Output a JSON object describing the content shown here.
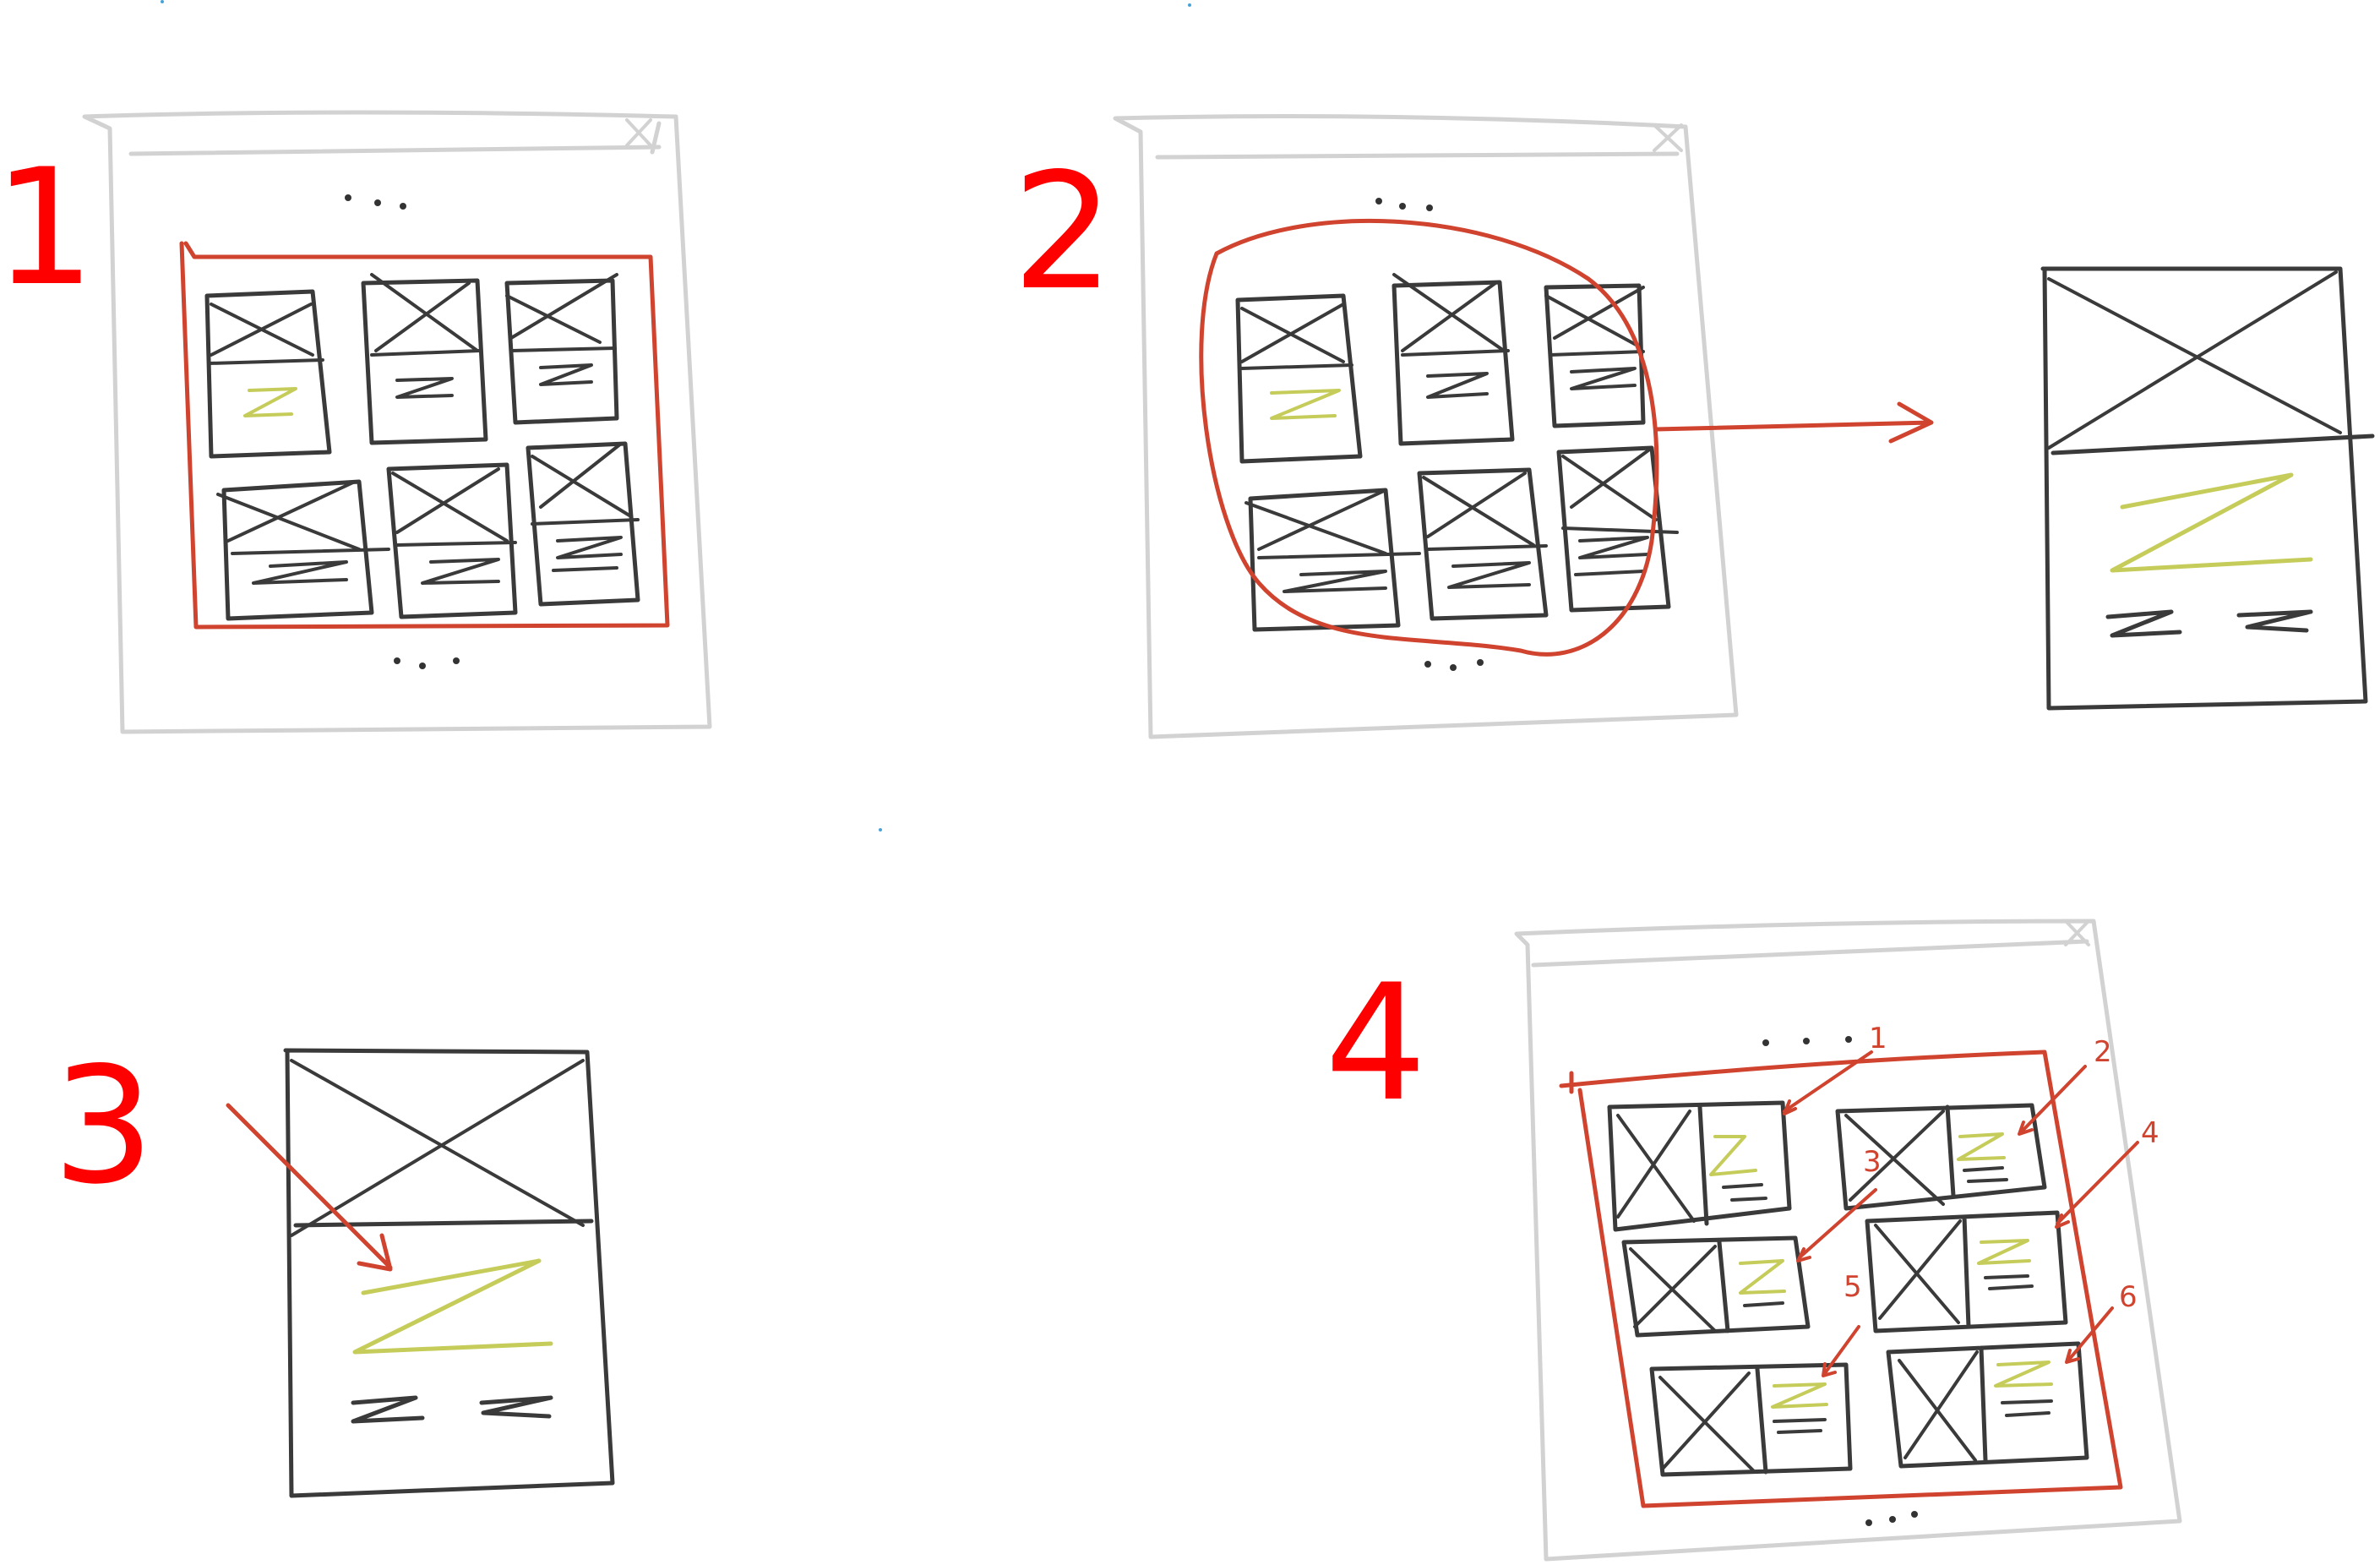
{
  "steps": [
    {
      "id": "step-1",
      "label": "1"
    },
    {
      "id": "step-2",
      "label": "2"
    },
    {
      "id": "step-3",
      "label": "3"
    },
    {
      "id": "step-4",
      "label": "4"
    }
  ],
  "step4_item_numbers": [
    "1",
    "2",
    "3",
    "4",
    "5",
    "6"
  ],
  "colors": {
    "ink": "#3a3a3a",
    "frame": "#cfcfcf",
    "highlight": "#d0432f",
    "text_scribble": "#c5cc5a",
    "label": "#ff0000"
  },
  "icons": {
    "image_placeholder": "crossed-box-icon",
    "pagination": "ellipsis-icon",
    "close": "close-icon"
  }
}
